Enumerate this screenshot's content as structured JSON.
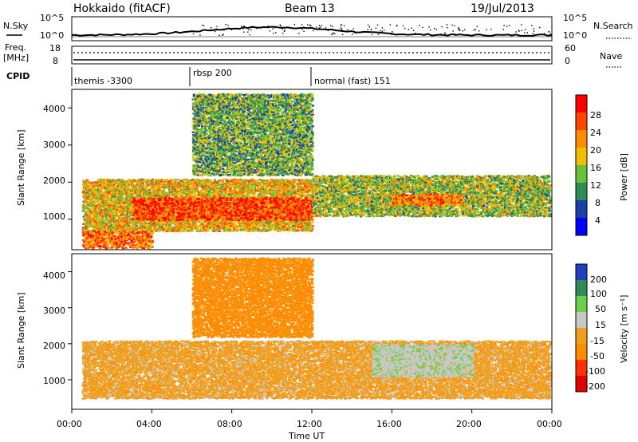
{
  "header": {
    "title": "Hokkaido (fitACF)",
    "beam": "Beam 13",
    "date": "19/Jul/2013"
  },
  "noise_panel": {
    "left_label": "N.Sky",
    "right_label": "N.Search",
    "left_ticks": [
      "10^5",
      "10^0"
    ],
    "right_ticks": [
      "10^5",
      "10^0"
    ]
  },
  "freq_panel": {
    "left_label_1": "Freq.",
    "left_label_2": "[MHz]",
    "right_label": "Nave",
    "left_ticks": [
      "18",
      "8"
    ],
    "right_ticks": [
      "60",
      "0"
    ]
  },
  "cpid": {
    "label": "CPID",
    "segments": [
      {
        "label": "themis -3300",
        "start_hour": 0,
        "end_hour": 6
      },
      {
        "label": "rbsp 200",
        "start_hour": 6,
        "end_hour": 12
      },
      {
        "label": "normal (fast) 151",
        "start_hour": 12,
        "end_hour": 24
      }
    ]
  },
  "power_panel": {
    "ylabel": "Slant Range [km]",
    "yticks": [
      "1000",
      "2000",
      "3000",
      "4000"
    ],
    "colorbar_label": "Power [dB]",
    "colorbar_ticks": [
      "4",
      "8",
      "12",
      "16",
      "20",
      "24",
      "28"
    ],
    "colors": [
      "#0000ff",
      "#1a3fa8",
      "#2e8b57",
      "#6cbf3b",
      "#f0c000",
      "#ff8c00",
      "#ff4500",
      "#ff0000"
    ]
  },
  "velocity_panel": {
    "ylabel": "Slant Range [km]",
    "yticks": [
      "1000",
      "2000",
      "3000",
      "4000"
    ],
    "colorbar_label": "Velocity [m s⁻¹]",
    "colorbar_ticks": [
      "200",
      "100",
      "50",
      "15",
      "-15",
      "-50",
      "-100",
      "-200"
    ],
    "colors": [
      "#2040c0",
      "#2e8b57",
      "#6bd04a",
      "#c8c8c8",
      "#f0a020",
      "#ff8c00",
      "#ff3000",
      "#e00000"
    ]
  },
  "x_axis": {
    "ticks": [
      "00:00",
      "04:00",
      "08:00",
      "12:00",
      "16:00",
      "20:00",
      "00:00"
    ],
    "label": "Time UT"
  },
  "chart_data": {
    "type": "heatmap",
    "title": "Hokkaido (fitACF)",
    "subtitle": "Beam 13",
    "date": "19/Jul/2013",
    "xlabel": "Time UT",
    "ylabel": "Slant Range [km]",
    "xlim_hours": [
      0,
      24
    ],
    "ylim_km": [
      180,
      4500
    ],
    "panels": [
      {
        "name": "Power",
        "unit": "dB",
        "colorbar_range": [
          0,
          30
        ],
        "colorbar_ticks": [
          4,
          8,
          12,
          16,
          20,
          24,
          28
        ],
        "echo_bands": [
          {
            "t0": 0.5,
            "t1": 12,
            "r0": 700,
            "r1": 2100,
            "level": 18
          },
          {
            "t0": 0.5,
            "t1": 4,
            "r0": 200,
            "r1": 700,
            "level": 22
          },
          {
            "t0": 3,
            "t1": 12,
            "r0": 1000,
            "r1": 1600,
            "level": 25
          },
          {
            "t0": 6,
            "t1": 12,
            "r0": 2200,
            "r1": 4400,
            "level": 12
          },
          {
            "t0": 12,
            "t1": 24,
            "r0": 1100,
            "r1": 2200,
            "level": 14
          },
          {
            "t0": 16,
            "t1": 19.5,
            "r0": 1400,
            "r1": 1700,
            "level": 22
          }
        ]
      },
      {
        "name": "Velocity",
        "unit": "m s-1",
        "colorbar_range": [
          -250,
          250
        ],
        "colorbar_ticks": [
          200,
          100,
          50,
          15,
          -15,
          -50,
          -100,
          -200
        ],
        "echo_bands": [
          {
            "t0": 0.5,
            "t1": 12,
            "r0": 500,
            "r1": 2100,
            "level": 0
          },
          {
            "t0": 6,
            "t1": 12,
            "r0": 2200,
            "r1": 4400,
            "level": -30
          },
          {
            "t0": 12,
            "t1": 24,
            "r0": 500,
            "r1": 2100,
            "level": 0
          },
          {
            "t0": 15,
            "t1": 20,
            "r0": 1100,
            "r1": 2000,
            "level": 40
          }
        ]
      }
    ]
  }
}
